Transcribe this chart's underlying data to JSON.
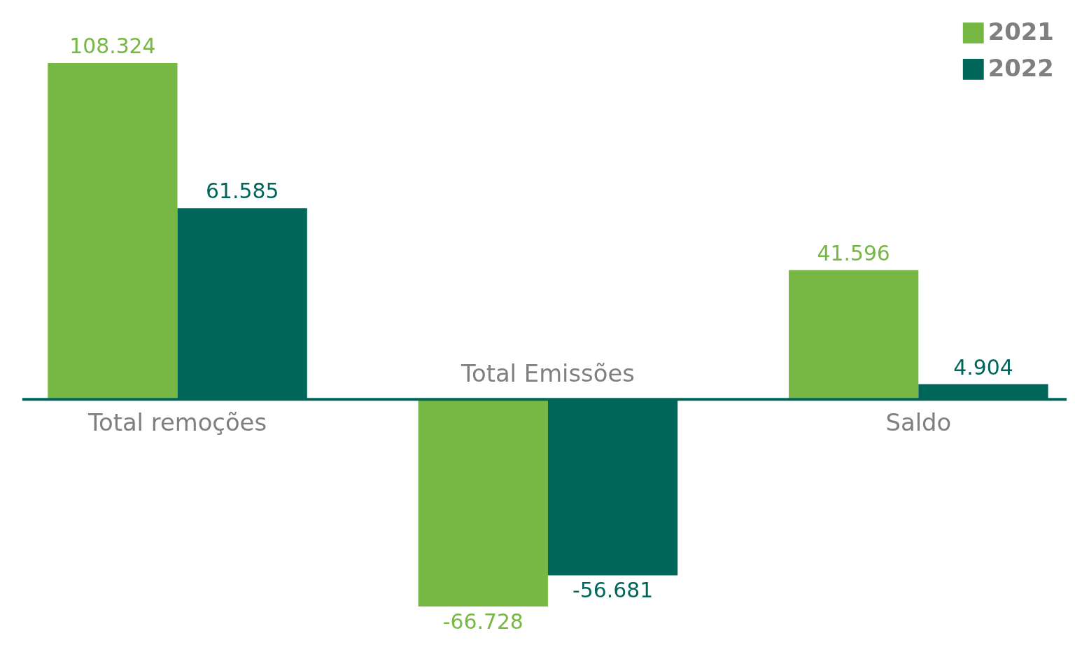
{
  "chart_data": {
    "type": "bar",
    "categories": [
      "Total remoções",
      "Total Emissões",
      "Saldo"
    ],
    "series": [
      {
        "name": "2021",
        "color": "#76b843",
        "values": [
          108324,
          -66728,
          41596
        ],
        "value_labels": [
          "108.324",
          "-66.728",
          "41.596"
        ]
      },
      {
        "name": "2022",
        "color": "#00665a",
        "values": [
          61585,
          -56681,
          4904
        ],
        "value_labels": [
          "61.585",
          "-56.681",
          "4.904"
        ]
      }
    ],
    "legend": "top right",
    "grid": false
  }
}
